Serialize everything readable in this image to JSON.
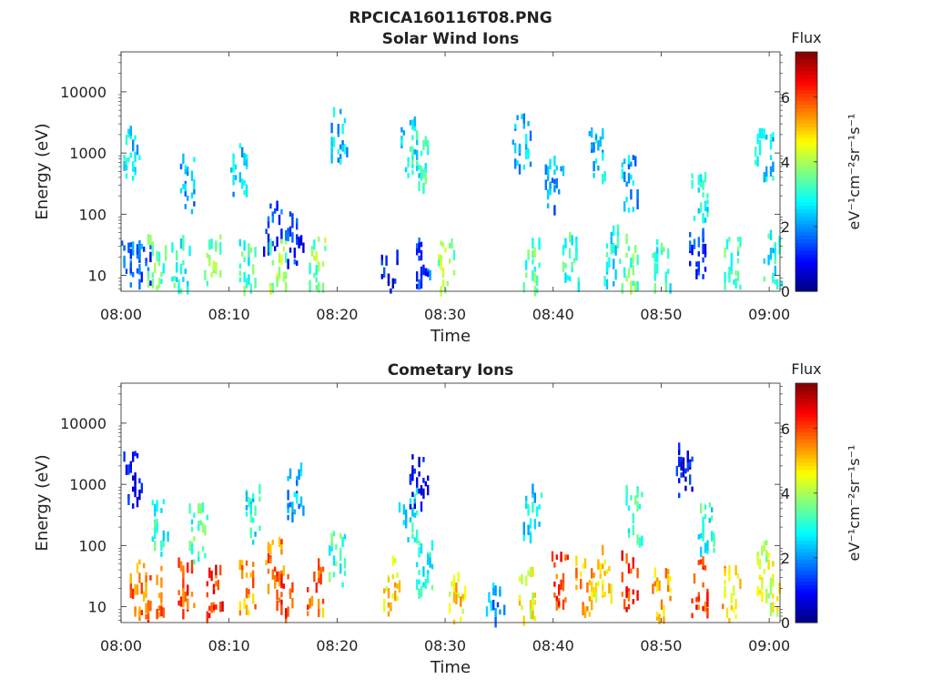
{
  "figure": {
    "title": "RPCICA160116T08.PNG"
  },
  "chart_data": [
    {
      "type": "heatmap",
      "title": "Solar Wind Ions",
      "xlabel": "Time",
      "ylabel": "Energy (eV)",
      "x_ticks": [
        "08:00",
        "08:10",
        "08:20",
        "08:30",
        "08:40",
        "08:50",
        "09:00"
      ],
      "xlim_minutes": [
        0,
        61
      ],
      "y_ticks": [
        {
          "value": 10,
          "label": "10"
        },
        {
          "value": 100,
          "label": "100"
        },
        {
          "value": 1000,
          "label": "1000"
        },
        {
          "value": 10000,
          "label": "10000"
        }
      ],
      "ylim": [
        5.5,
        45000
      ],
      "yscale": "log",
      "colorbar": {
        "title": "Flux",
        "units": "eV⁻¹cm⁻²sr⁻¹s⁻¹",
        "range": [
          0,
          7.4
        ],
        "ticks": [
          0,
          2,
          4,
          6
        ],
        "colormap": "jet"
      },
      "clusters": [
        {
          "t": 0.8,
          "e": 900,
          "v": 2.6
        },
        {
          "t": 0.6,
          "e": 15,
          "v": 1.8
        },
        {
          "t": 2.0,
          "e": 12,
          "v": 1.6
        },
        {
          "t": 3.2,
          "e": 14,
          "v": 3.4
        },
        {
          "t": 5.5,
          "e": 14,
          "v": 3.0
        },
        {
          "t": 6.0,
          "e": 300,
          "v": 2.2
        },
        {
          "t": 8.5,
          "e": 15,
          "v": 3.6
        },
        {
          "t": 10.8,
          "e": 500,
          "v": 2.4
        },
        {
          "t": 11.7,
          "e": 15,
          "v": 3.2
        },
        {
          "t": 14.0,
          "e": 60,
          "v": 1.4
        },
        {
          "t": 14.5,
          "e": 15,
          "v": 3.8
        },
        {
          "t": 16.0,
          "e": 40,
          "v": 1.2
        },
        {
          "t": 18.0,
          "e": 15,
          "v": 3.6
        },
        {
          "t": 20.0,
          "e": 1800,
          "v": 2.4
        },
        {
          "t": 24.8,
          "e": 10,
          "v": 1.0
        },
        {
          "t": 26.5,
          "e": 1200,
          "v": 2.6
        },
        {
          "t": 27.5,
          "e": 700,
          "v": 3.0
        },
        {
          "t": 27.8,
          "e": 15,
          "v": 1.4
        },
        {
          "t": 30.0,
          "e": 12,
          "v": 3.8
        },
        {
          "t": 37.0,
          "e": 1500,
          "v": 2.2
        },
        {
          "t": 38.0,
          "e": 15,
          "v": 3.4
        },
        {
          "t": 40.0,
          "e": 300,
          "v": 2.0
        },
        {
          "t": 41.5,
          "e": 15,
          "v": 3.2
        },
        {
          "t": 44.0,
          "e": 1000,
          "v": 2.4
        },
        {
          "t": 45.5,
          "e": 20,
          "v": 2.8
        },
        {
          "t": 47.0,
          "e": 300,
          "v": 2.2
        },
        {
          "t": 47.0,
          "e": 15,
          "v": 3.4
        },
        {
          "t": 50.0,
          "e": 13,
          "v": 3.0
        },
        {
          "t": 53.5,
          "e": 200,
          "v": 2.6
        },
        {
          "t": 53.3,
          "e": 20,
          "v": 1.2
        },
        {
          "t": 56.5,
          "e": 15,
          "v": 3.2
        },
        {
          "t": 59.5,
          "e": 800,
          "v": 2.6
        },
        {
          "t": 60.3,
          "e": 20,
          "v": 2.8
        }
      ]
    },
    {
      "type": "heatmap",
      "title": "Cometary Ions",
      "xlabel": "Time",
      "ylabel": "Energy (eV)",
      "x_ticks": [
        "08:00",
        "08:10",
        "08:20",
        "08:30",
        "08:40",
        "08:50",
        "09:00"
      ],
      "xlim_minutes": [
        0,
        61
      ],
      "y_ticks": [
        {
          "value": 10,
          "label": "10"
        },
        {
          "value": 100,
          "label": "100"
        },
        {
          "value": 1000,
          "label": "1000"
        },
        {
          "value": 10000,
          "label": "10000"
        }
      ],
      "ylim": [
        5.5,
        45000
      ],
      "yscale": "log",
      "colorbar": {
        "title": "Flux",
        "units": "eV⁻¹cm⁻²sr⁻¹s⁻¹",
        "range": [
          0,
          7.4
        ],
        "ticks": [
          0,
          2,
          4,
          6
        ],
        "colormap": "jet"
      },
      "clusters": [
        {
          "t": 1.5,
          "e": 20,
          "v": 5.6
        },
        {
          "t": 1.0,
          "e": 1200,
          "v": 0.8
        },
        {
          "t": 3.0,
          "e": 15,
          "v": 5.8
        },
        {
          "t": 3.5,
          "e": 200,
          "v": 3.0
        },
        {
          "t": 5.8,
          "e": 20,
          "v": 6.0
        },
        {
          "t": 8.5,
          "e": 15,
          "v": 6.2
        },
        {
          "t": 7.0,
          "e": 150,
          "v": 3.2
        },
        {
          "t": 11.5,
          "e": 20,
          "v": 5.4
        },
        {
          "t": 12.0,
          "e": 300,
          "v": 2.8
        },
        {
          "t": 14.2,
          "e": 45,
          "v": 5.6
        },
        {
          "t": 15.0,
          "e": 15,
          "v": 6.2
        },
        {
          "t": 16.0,
          "e": 800,
          "v": 2.2
        },
        {
          "t": 18.0,
          "e": 20,
          "v": 5.6
        },
        {
          "t": 20.0,
          "e": 60,
          "v": 3.2
        },
        {
          "t": 25.0,
          "e": 20,
          "v": 4.8
        },
        {
          "t": 26.5,
          "e": 300,
          "v": 2.8
        },
        {
          "t": 27.5,
          "e": 1200,
          "v": 0.8
        },
        {
          "t": 28.0,
          "e": 40,
          "v": 3.0
        },
        {
          "t": 31.0,
          "e": 12,
          "v": 4.8
        },
        {
          "t": 34.5,
          "e": 9,
          "v": 2.0
        },
        {
          "t": 37.5,
          "e": 15,
          "v": 4.6
        },
        {
          "t": 38.0,
          "e": 300,
          "v": 2.6
        },
        {
          "t": 40.5,
          "e": 25,
          "v": 6.0
        },
        {
          "t": 42.8,
          "e": 20,
          "v": 5.2
        },
        {
          "t": 44.5,
          "e": 30,
          "v": 4.8
        },
        {
          "t": 47.0,
          "e": 25,
          "v": 6.2
        },
        {
          "t": 47.5,
          "e": 300,
          "v": 3.2
        },
        {
          "t": 50.0,
          "e": 15,
          "v": 5.2
        },
        {
          "t": 53.5,
          "e": 20,
          "v": 6.0
        },
        {
          "t": 54.0,
          "e": 200,
          "v": 3.0
        },
        {
          "t": 56.5,
          "e": 15,
          "v": 5.0
        },
        {
          "t": 59.5,
          "e": 40,
          "v": 4.2
        },
        {
          "t": 60.4,
          "e": 20,
          "v": 4.4
        },
        {
          "t": 52.0,
          "e": 1500,
          "v": 0.9
        }
      ]
    }
  ]
}
